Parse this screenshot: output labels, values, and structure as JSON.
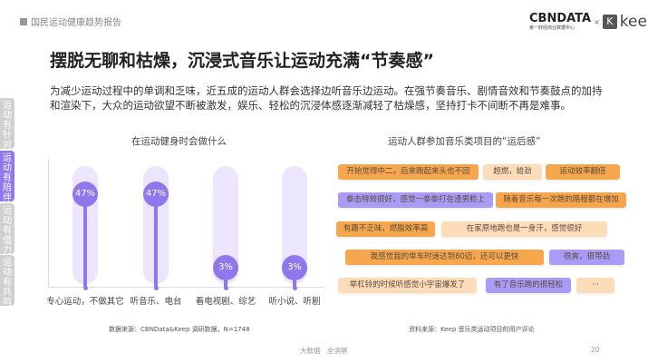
{
  "header": {
    "report_title": "国民运动健康趋势报告",
    "logo_cbn": "CBNDATA",
    "logo_cbn_sub": "第一财经商业数据中心",
    "logo_x": "×",
    "logo_k": "K",
    "logo_keep": "keep"
  },
  "page": {
    "title": "摆脱无聊和枯燥，沉浸式音乐让运动充满“节奏感”",
    "description": "为减少运动过程中的单调和乏味，近五成的运动人群会选择边听音乐边运动。在强节奏音乐、剧情音效和节奏鼓点的加持和渲染下，大众的运动欲望不断被激发，娱乐、轻松的沉浸体感逐渐减轻了枯燥感，坚持打卡不间断不再是难事。"
  },
  "side_tabs": [
    {
      "label": "运动有针对",
      "active": false
    },
    {
      "label": "运动有陪伴",
      "active": true
    },
    {
      "label": "运动有借力",
      "active": false
    },
    {
      "label": "运动有共鸣",
      "active": false
    }
  ],
  "chart_data": {
    "type": "bar",
    "title": "在运动健身时会做什么",
    "categories": [
      "专心运动，不做其它",
      "听音乐、电台",
      "看电视剧、综艺",
      "听小说、听剧"
    ],
    "values": [
      47,
      47,
      3,
      3
    ],
    "labels": [
      "47%",
      "47%",
      "3%",
      "3%"
    ],
    "ylim": [
      0,
      100
    ],
    "color": "#8f77ec",
    "source": "数据来源：CBNData&Keep 调研数据，N=1748"
  },
  "feedback": {
    "title": "运动人群参加音乐类项目的“运后感”",
    "rows": [
      [
        {
          "text": "开始觉得中二，后来跑起来头也不回",
          "style": "o"
        },
        {
          "text": "超燃，给劲",
          "style": "l"
        },
        {
          "text": "运动效率翻倍",
          "style": "o"
        }
      ],
      [
        {
          "text": "拳击特效很好，感觉一拳拳打在渣男脸上",
          "style": "p"
        },
        {
          "text": "随着音乐每一次跑的路程都在增加",
          "style": "o"
        }
      ],
      [
        {
          "text": "有趣不乏味，燃脂效率高",
          "style": "o"
        },
        {
          "text": "在家原地跑也是一身汗，感觉很好",
          "style": "l"
        }
      ],
      [
        {
          "text": "我感觉我的单车时速达到80迈，还可以更快",
          "style": "o"
        },
        {
          "text": "很爽，很带劲",
          "style": "p"
        }
      ],
      [
        {
          "text": "举杠铃的时候听感觉小宇宙爆发了",
          "style": "l"
        },
        {
          "text": "有了音乐跑的很轻松",
          "style": "p"
        },
        {
          "text": "···",
          "style": "l"
        }
      ]
    ],
    "source": "资料来源：Keep 音乐类运动项目的用户评论"
  },
  "colors": {
    "accent": "#8f77ec",
    "orange": "#f6a74e",
    "light_orange": "#fcdcb9",
    "purple": "#aa9bf6"
  },
  "footer": {
    "left": "大数据　全洞察",
    "page_number": "20"
  }
}
